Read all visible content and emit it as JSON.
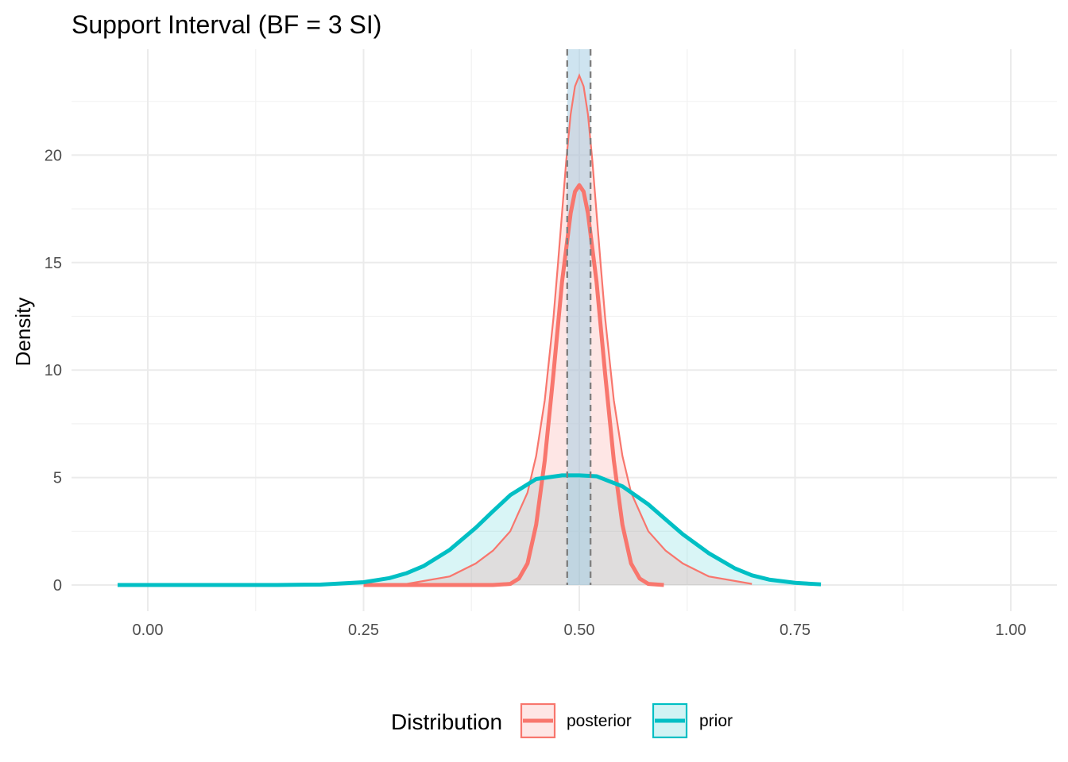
{
  "chart_data": {
    "type": "area",
    "title": "Support Interval (BF = 3 SI)",
    "xlabel": "",
    "ylabel": "Density",
    "xlim": [
      -0.088,
      1.05
    ],
    "ylim": [
      -1.0,
      25.0
    ],
    "x_ticks": [
      0.0,
      0.25,
      0.5,
      0.75,
      1.0
    ],
    "x_tick_labels": [
      "0.00",
      "0.25",
      "0.50",
      "0.75",
      "1.00"
    ],
    "y_ticks": [
      0,
      5,
      10,
      15,
      20
    ],
    "y_tick_labels": [
      "0",
      "5",
      "10",
      "15",
      "20"
    ],
    "grid": true,
    "legend": {
      "title": "Distribution",
      "position": "bottom",
      "entries": [
        {
          "label": "posterior",
          "color": "#F8766D"
        },
        {
          "label": "prior",
          "color": "#00BFC4"
        }
      ]
    },
    "support_interval": {
      "low": 0.486,
      "high": 0.513,
      "fill": "#A6CEE3"
    },
    "series": [
      {
        "name": "posterior",
        "color": "#F8766D",
        "kind": "shaded-density",
        "x": [
          0.3,
          0.35,
          0.38,
          0.4,
          0.42,
          0.44,
          0.45,
          0.46,
          0.47,
          0.475,
          0.48,
          0.485,
          0.49,
          0.495,
          0.5,
          0.505,
          0.51,
          0.515,
          0.52,
          0.525,
          0.53,
          0.54,
          0.55,
          0.56,
          0.58,
          0.6,
          0.62,
          0.65,
          0.7
        ],
        "y": [
          0.05,
          0.4,
          1.0,
          1.6,
          2.5,
          4.3,
          6.0,
          8.6,
          12.4,
          14.8,
          17.3,
          19.8,
          21.9,
          23.2,
          23.7,
          23.2,
          21.9,
          19.8,
          17.3,
          14.8,
          12.4,
          8.6,
          6.0,
          4.3,
          2.5,
          1.6,
          1.0,
          0.4,
          0.05
        ]
      },
      {
        "name": "posterior",
        "color": "#F8766D",
        "kind": "density-line",
        "x": [
          0.25,
          0.4,
          0.42,
          0.43,
          0.44,
          0.45,
          0.46,
          0.47,
          0.48,
          0.49,
          0.495,
          0.5,
          0.505,
          0.51,
          0.52,
          0.53,
          0.54,
          0.55,
          0.56,
          0.57,
          0.58,
          0.598
        ],
        "y": [
          0.0,
          0.0,
          0.05,
          0.3,
          1.0,
          2.8,
          5.8,
          9.8,
          14.1,
          17.3,
          18.3,
          18.6,
          18.3,
          17.3,
          14.1,
          9.8,
          5.8,
          2.8,
          1.0,
          0.3,
          0.05,
          0.0
        ]
      },
      {
        "name": "prior",
        "color": "#00BFC4",
        "kind": "shaded-density",
        "x": [
          -0.035,
          0.05,
          0.1,
          0.15,
          0.2,
          0.25,
          0.28,
          0.3,
          0.32,
          0.35,
          0.38,
          0.4,
          0.42,
          0.45,
          0.48,
          0.5,
          0.52,
          0.55,
          0.58,
          0.6,
          0.62,
          0.65,
          0.68,
          0.7,
          0.72,
          0.75,
          0.78
        ],
        "y": [
          0.0,
          0.0,
          0.0,
          0.0,
          0.02,
          0.13,
          0.32,
          0.55,
          0.89,
          1.64,
          2.66,
          3.43,
          4.18,
          4.93,
          5.1,
          5.1,
          5.06,
          4.59,
          3.75,
          3.05,
          2.36,
          1.48,
          0.78,
          0.45,
          0.25,
          0.1,
          0.03
        ]
      }
    ]
  }
}
